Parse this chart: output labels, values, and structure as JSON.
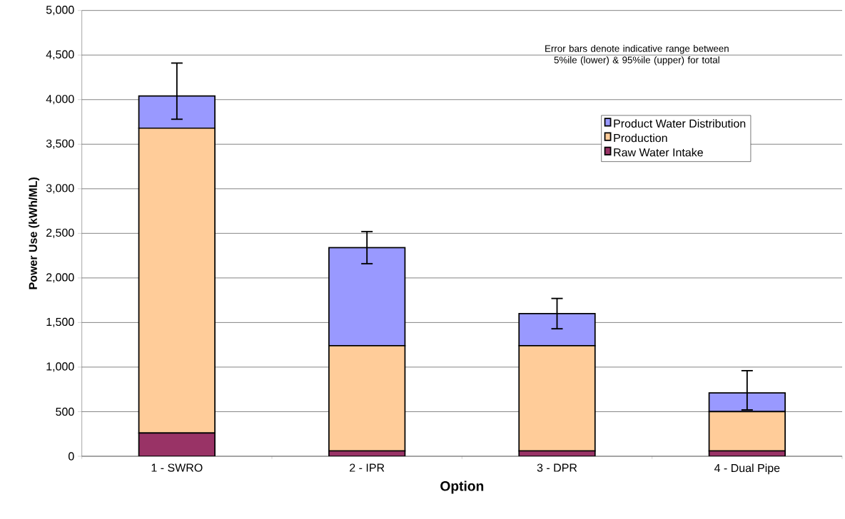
{
  "chart_data": {
    "type": "bar",
    "stacked": true,
    "xlabel": "Option",
    "ylabel": "Power Use (kWh/ML)",
    "categories": [
      "1 - SWRO",
      "2 - IPR",
      "3 - DPR",
      "4 - Dual Pipe"
    ],
    "series": [
      {
        "name": "Raw Water Intake",
        "color": "#993366",
        "values": [
          260,
          60,
          60,
          60
        ]
      },
      {
        "name": "Production",
        "color": "#ffcc99",
        "values": [
          3420,
          1180,
          1180,
          440
        ]
      },
      {
        "name": "Product Water Distribution",
        "color": "#9999ff",
        "values": [
          360,
          1100,
          360,
          210
        ],
        "errors": [
          [
            3780,
            4410
          ],
          [
            2160,
            2520
          ],
          [
            1430,
            1770
          ],
          [
            520,
            960
          ]
        ]
      }
    ],
    "ylim": [
      0,
      5000
    ],
    "yticks": [
      0,
      500,
      {
        "value": 1000,
        "label": "1,000"
      },
      {
        "value": 1500,
        "label": "1,500"
      },
      {
        "value": 2000,
        "label": "2,000"
      },
      {
        "value": 2500,
        "label": "2,500"
      },
      {
        "value": 3000,
        "label": "3,000"
      },
      {
        "value": 3500,
        "label": "3,500"
      },
      {
        "value": 4000,
        "label": "4,000"
      },
      {
        "value": 4500,
        "label": "4,500"
      },
      {
        "value": 5000,
        "label": "5,000"
      }
    ],
    "grid": "y",
    "legend": "top right",
    "annotations": [
      "Error bars denote indicative range between 5%ile (lower) & 95%ile (upper) for total"
    ]
  }
}
